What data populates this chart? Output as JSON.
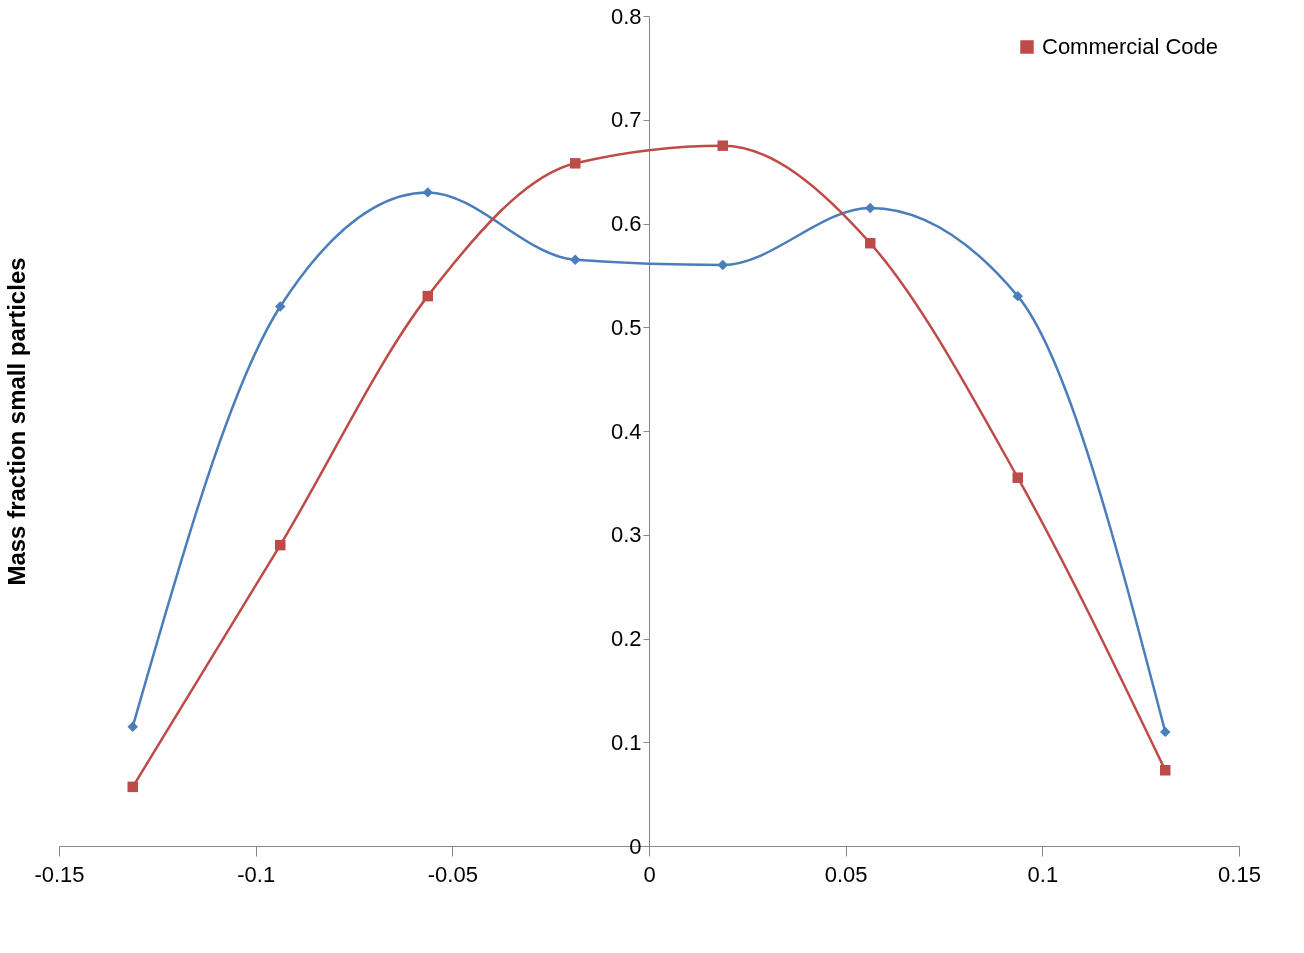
{
  "chart_data": {
    "type": "line",
    "ylabel": "Mass fraction small particles",
    "x": [
      -0.13125,
      -0.09375,
      -0.05625,
      -0.01875,
      0.01875,
      0.05625,
      0.09375,
      0.13125
    ],
    "series": [
      {
        "color": "#4a7ebb",
        "marker": "diamond",
        "values": [
          0.115,
          0.52,
          0.63,
          0.565,
          0.56,
          0.615,
          0.53,
          0.11
        ]
      },
      {
        "name": "Commercial Code",
        "color": "#be4b48",
        "marker": "square",
        "values": [
          0.057,
          0.29,
          0.53,
          0.658,
          0.675,
          0.581,
          0.355,
          0.073
        ]
      }
    ],
    "xlim": [
      -0.15,
      0.15
    ],
    "xticks": [
      -0.15,
      -0.1,
      -0.05,
      0,
      0.05,
      0.1,
      0.15
    ],
    "ylim": [
      0,
      0.8
    ],
    "yticks": [
      0,
      0.1,
      0.2,
      0.3,
      0.4,
      0.5,
      0.6,
      0.7,
      0.8
    ],
    "grid": false,
    "legend": "top right"
  }
}
